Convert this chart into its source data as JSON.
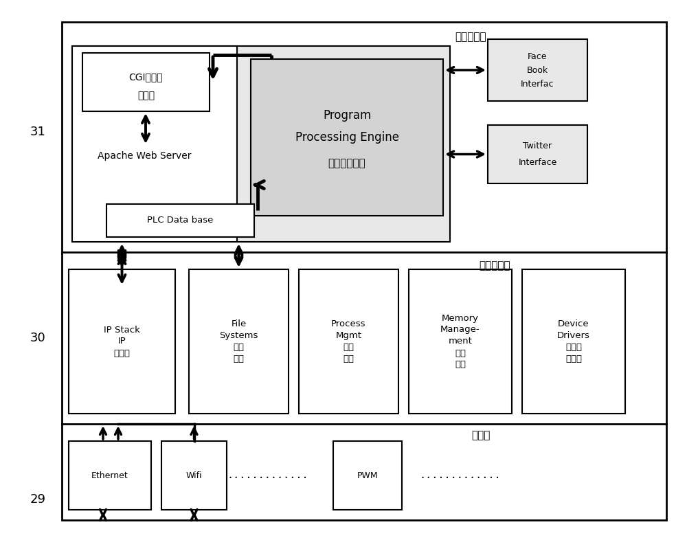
{
  "fig_width": 10.0,
  "fig_height": 8.02,
  "bg_color": "#ffffff",
  "label_31": "31",
  "label_30": "30",
  "label_29": "29",
  "layer_app_label": "应用程序层",
  "layer_os_label": "操作系统层",
  "layer_hw_label": "硬件层",
  "cgi_line1": "CGI共有网",
  "cgi_line2": "关接口",
  "apache_label": "Apache Web Server",
  "plc_label": "PLC Data base",
  "program_line1": "Program",
  "program_line2": "Processing Engine",
  "program_line3": "计算引擎程序",
  "facebook_line1": "Face",
  "facebook_line2": "Book",
  "facebook_line3": "Interfac",
  "twitter_line1": "Twitter",
  "twitter_line2": "Interface",
  "ipstack_label": "IP Stack\nIP\n协议栈",
  "filesys_label": "File\nSystems\n文件\n系统",
  "process_label": "Process\nMgmt\n过程\n管理",
  "memory_label": "Memory\nManage-\nment\n内存\n管理",
  "device_label": "Device\nDrivers\n硬件驱\n动程序",
  "ethernet_label": "Ethernet",
  "wifi_label": "Wifi",
  "pwm_label": "PWM",
  "dots": "............."
}
